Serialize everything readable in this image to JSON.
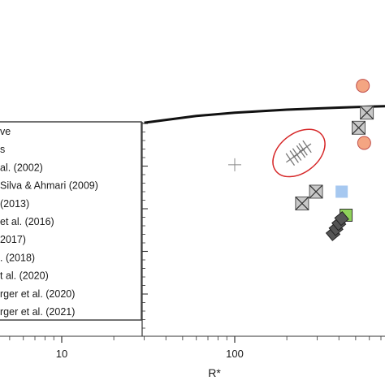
{
  "chart_data": {
    "type": "scatter",
    "title": "",
    "xlabel": "R*",
    "ylabel": "",
    "x_scale": "log",
    "xlim": [
      2.5,
      600
    ],
    "ylim": [
      0,
      1
    ],
    "x_ticks": [
      {
        "value": 10,
        "label": "10"
      },
      {
        "value": 100,
        "label": "100"
      }
    ],
    "y_ticks": [],
    "grid": false,
    "legend_position": "lower-left",
    "legend_entries": [
      "ve",
      "s",
      "al. (2002)",
      "Silva & Ahmari (2009)",
      "(2013)",
      "et al. (2016)",
      "2017)",
      ". (2018)",
      "t al. (2020)",
      "rger et al. (2020)",
      "rger et al. (2021)"
    ],
    "curve": {
      "x": [
        30,
        60,
        100,
        200,
        400,
        600
      ],
      "y": [
        0.635,
        0.655,
        0.665,
        0.674,
        0.68,
        0.683
      ]
    },
    "series": [
      {
        "marker": "circle",
        "color": "#f4a582",
        "points": [
          {
            "x": 550,
            "y": 0.745
          },
          {
            "x": 560,
            "y": 0.575
          }
        ]
      },
      {
        "marker": "crossed-square",
        "color": "#c8c8c8",
        "points": [
          {
            "x": 580,
            "y": 0.665
          },
          {
            "x": 520,
            "y": 0.62
          },
          {
            "x": 295,
            "y": 0.43
          },
          {
            "x": 245,
            "y": 0.395
          }
        ]
      },
      {
        "marker": "hash",
        "color": "#777777",
        "points": [
          {
            "x": 215,
            "y": 0.53
          },
          {
            "x": 235,
            "y": 0.545
          },
          {
            "x": 255,
            "y": 0.56
          }
        ]
      },
      {
        "marker": "square",
        "color": "#a6c8f0",
        "points": [
          {
            "x": 415,
            "y": 0.43
          }
        ]
      },
      {
        "marker": "square",
        "color": "#8fd15a",
        "points": [
          {
            "x": 440,
            "y": 0.36
          }
        ]
      },
      {
        "marker": "rotated-square",
        "color": "#555555",
        "points": [
          {
            "x": 370,
            "y": 0.305
          },
          {
            "x": 385,
            "y": 0.32
          },
          {
            "x": 400,
            "y": 0.335
          },
          {
            "x": 415,
            "y": 0.35
          }
        ]
      },
      {
        "marker": "plus",
        "color": "#888888",
        "points": [
          {
            "x": 100,
            "y": 0.51
          }
        ]
      }
    ],
    "ellipse": {
      "cx": 235,
      "cy": 0.545,
      "color": "#d62728"
    }
  }
}
